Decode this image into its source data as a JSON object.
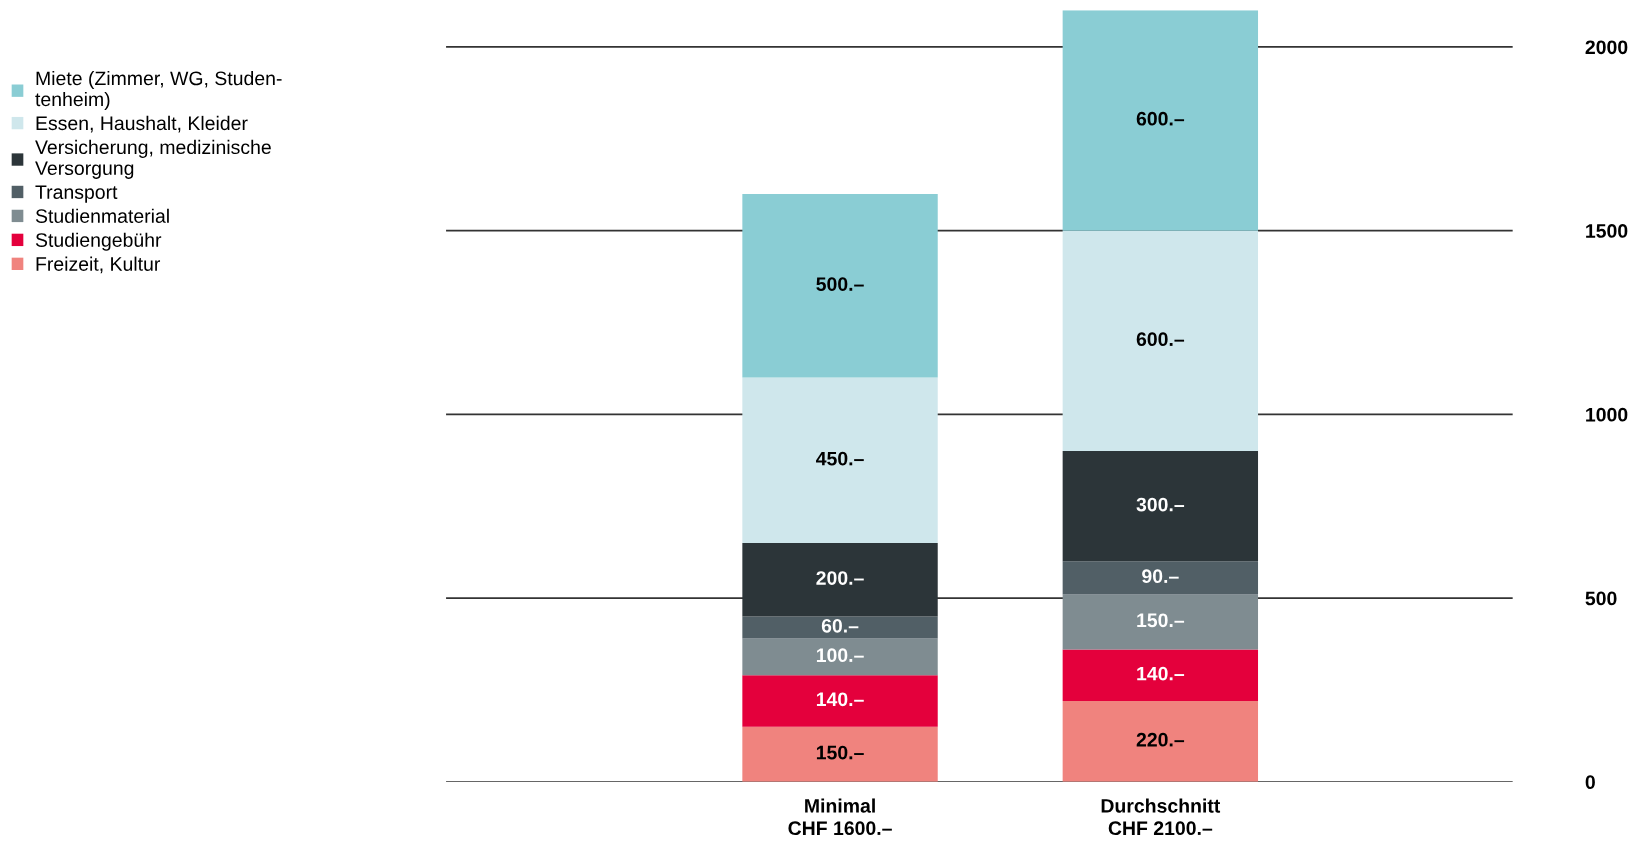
{
  "chart_data": {
    "type": "bar",
    "stacked": true,
    "categories": [
      "Minimal\nCHF 1600.–",
      "Durchschnitt\nCHF 2100.–"
    ],
    "series": [
      {
        "name": "Freizeit, Kultur",
        "color": "#f0837e",
        "values": [
          150,
          220
        ],
        "value_labels": [
          "150.–",
          "220.–"
        ]
      },
      {
        "name": "Studiengebühr",
        "color": "#e4003c",
        "values": [
          140,
          140
        ],
        "value_labels": [
          "140.–",
          "140.–"
        ]
      },
      {
        "name": "Studienmaterial",
        "color": "#7f8c91",
        "values": [
          100,
          150
        ],
        "value_labels": [
          "100.–",
          "150.–"
        ]
      },
      {
        "name": "Transport",
        "color": "#515f66",
        "values": [
          60,
          90
        ],
        "value_labels": [
          "60.–",
          "90.–"
        ]
      },
      {
        "name": "Versicherung, medizinische\nVersorgung",
        "color": "#2c3539",
        "values": [
          200,
          300
        ],
        "value_labels": [
          "200.–",
          "300.–"
        ]
      },
      {
        "name": "Essen, Haushalt, Kleider",
        "color": "#cfe7ec",
        "values": [
          450,
          600
        ],
        "value_labels": [
          "450.–",
          "600.–"
        ]
      },
      {
        "name": "Miete (Zimmer, WG, Studen-\ntenheim)",
        "color": "#8acdd4",
        "values": [
          500,
          600
        ],
        "value_labels": [
          "500.–",
          "600.–"
        ]
      }
    ],
    "ylim": [
      0,
      2100
    ],
    "yticks": [
      0,
      500,
      1000,
      1500,
      2000
    ],
    "grid": "y",
    "legend": "top left"
  }
}
